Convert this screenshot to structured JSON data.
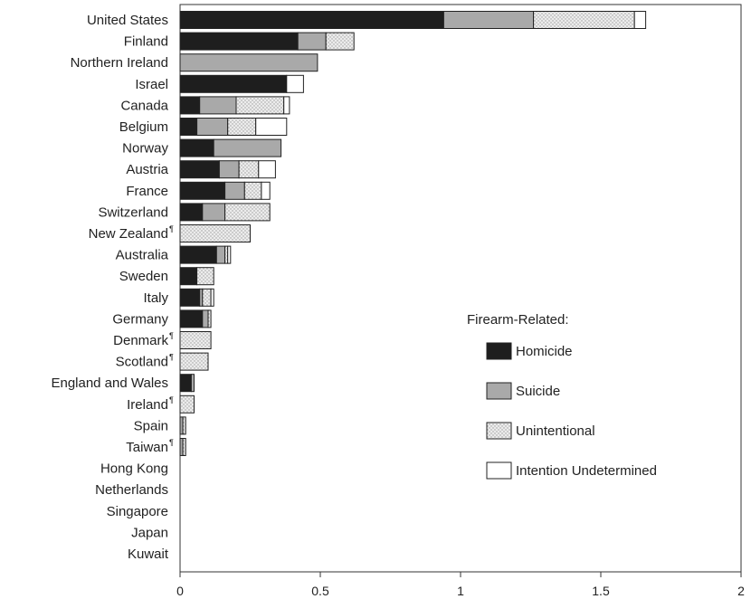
{
  "chart_data": {
    "type": "bar",
    "orientation": "horizontal",
    "stacked": true,
    "categories": [
      "United States",
      "Finland",
      "Northern Ireland",
      "Israel",
      "Canada",
      "Belgium",
      "Norway",
      "Austria",
      "France",
      "Switzerland",
      "New Zealand",
      "Australia",
      "Sweden",
      "Italy",
      "Germany",
      "Denmark",
      "Scotland",
      "England and Wales",
      "Ireland",
      "Spain",
      "Taiwan",
      "Hong Kong",
      "Netherlands",
      "Singapore",
      "Japan",
      "Kuwait"
    ],
    "category_marks": [
      "",
      "",
      "",
      "",
      "",
      "",
      "",
      "",
      "",
      "",
      "¶",
      "",
      "",
      "",
      "",
      "¶",
      "¶",
      "",
      "¶",
      "",
      "¶",
      "",
      "",
      "",
      "",
      ""
    ],
    "series": [
      {
        "name": "Homicide",
        "values": [
          0.94,
          0.42,
          0,
          0.38,
          0.07,
          0.06,
          0.12,
          0.14,
          0.16,
          0.08,
          0,
          0.13,
          0.06,
          0.07,
          0.08,
          0,
          0,
          0.04,
          0,
          0,
          0,
          0,
          0,
          0,
          0,
          0
        ]
      },
      {
        "name": "Suicide",
        "values": [
          0.32,
          0.1,
          0.49,
          0,
          0.13,
          0.11,
          0.24,
          0.07,
          0.07,
          0.08,
          0,
          0.03,
          0,
          0.01,
          0.02,
          0,
          0,
          0.01,
          0,
          0.01,
          0.01,
          0,
          0,
          0,
          0,
          0
        ]
      },
      {
        "name": "Unintentional",
        "values": [
          0.36,
          0.1,
          0,
          0,
          0.17,
          0.1,
          0,
          0.07,
          0.06,
          0.16,
          0.25,
          0.01,
          0.06,
          0.03,
          0.01,
          0.11,
          0.1,
          0,
          0.05,
          0.01,
          0.01,
          0,
          0,
          0,
          0,
          0
        ]
      },
      {
        "name": "Intention Undetermined",
        "values": [
          0.04,
          0,
          0,
          0.06,
          0.02,
          0.11,
          0,
          0.06,
          0.03,
          0,
          0,
          0.01,
          0,
          0.01,
          0,
          0,
          0,
          0,
          0,
          0,
          0,
          0,
          0,
          0,
          0,
          0
        ]
      }
    ],
    "series_colors": [
      "#1e1e1e",
      "#a9a9a9",
      "#ececec",
      "#ffffff"
    ],
    "series_patterns": [
      "solid",
      "solid",
      "dotted",
      "solid"
    ],
    "x_ticks": [
      0,
      0.5,
      1,
      1.5,
      2
    ],
    "x_tick_labels": [
      "0",
      "0.5",
      "1",
      "1.5",
      "2"
    ],
    "xlim": [
      0,
      2
    ],
    "xlabel": "",
    "ylabel": "",
    "title": "",
    "grid": false,
    "legend_title": "Firearm-Related:",
    "legend_position": "lower-right"
  }
}
